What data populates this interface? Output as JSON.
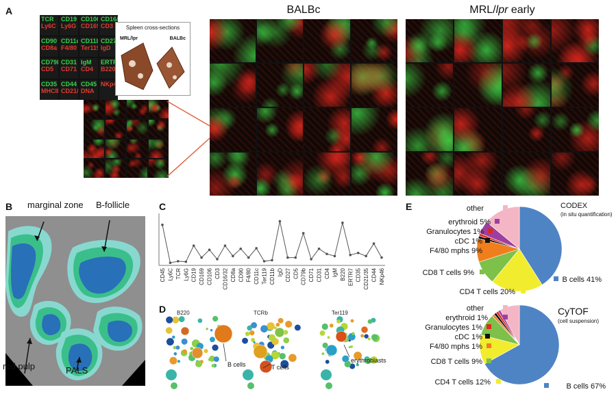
{
  "panel_labels": {
    "a": "A",
    "b": "B",
    "c": "C",
    "d": "D",
    "e": "E"
  },
  "panel_a": {
    "legend_pairs": [
      [
        "TCR",
        "Ly6C"
      ],
      [
        "CD19",
        "Ly6G"
      ],
      [
        "CD106",
        "CD169"
      ],
      [
        "CD16/32",
        "CD3"
      ],
      [
        "CD90",
        "CD8a"
      ],
      [
        "CD11c",
        "F4/80"
      ],
      [
        "CD11b",
        "Ter119"
      ],
      [
        "CD27",
        "IgD"
      ],
      [
        "CD79b",
        "CD5"
      ],
      [
        "CD31",
        "CD71"
      ],
      [
        "IgM",
        "CD4"
      ],
      [
        "ERTR7",
        "B220"
      ],
      [
        "CD35",
        "MHCII"
      ],
      [
        "CD44",
        "CD21/35"
      ],
      [
        "CD45",
        "DNA"
      ],
      [
        "",
        "NKp46"
      ]
    ],
    "inset_title": "Spleen cross-sections",
    "inset_left": "MRL/lpr",
    "inset_right": "BALBc",
    "balbc_title": "BALBc",
    "mrl_title_pre": "MRL/",
    "mrl_title_it": "lpr",
    "mrl_title_post": " early"
  },
  "panel_b": {
    "label_marginal": "marginal zone",
    "label_follicle": "B-follicle",
    "label_redpulp": "red pulp",
    "label_pals": "PALS",
    "colors": {
      "redpulp": "#8f8f8f",
      "marginal": "#88d8d0",
      "followed": "#3bbf8a",
      "bfollicle": "#2870b8"
    }
  },
  "chart_data": {
    "type": "line",
    "categories": [
      "CD45",
      "Ly6C",
      "TCR",
      "Ly6G",
      "CD19",
      "CD169",
      "CD106",
      "CD3",
      "CD16/32",
      "CD8a",
      "CD90",
      "F4/80",
      "CD11c",
      "Ter119",
      "CD11b",
      "IgD",
      "CD27",
      "CD5",
      "CD79b",
      "CD71",
      "CD31",
      "CD4",
      "IgM",
      "B220",
      "ERTR7",
      "CD35",
      "CD21/35",
      "CD44",
      "NKp46"
    ],
    "values": [
      0.78,
      0.05,
      0.08,
      0.07,
      0.38,
      0.15,
      0.3,
      0.12,
      0.38,
      0.18,
      0.32,
      0.15,
      0.33,
      0.08,
      0.1,
      0.85,
      0.15,
      0.15,
      0.62,
      0.12,
      0.32,
      0.22,
      0.18,
      0.82,
      0.2,
      0.24,
      0.18,
      0.42,
      0.15
    ],
    "ylim": [
      0,
      1
    ],
    "xlabel": "",
    "ylabel": "",
    "title": ""
  },
  "panel_d": {
    "titles": [
      "B220",
      "TCRb",
      "Ter119"
    ],
    "annotations": [
      "B cells",
      "T cells",
      "erythroblasts"
    ]
  },
  "panel_e": {
    "codex": {
      "title": "CODEX",
      "subtitle": "(in situ quantification)",
      "labels": [
        "other",
        "erythroid 5%",
        "Granulocytes 1%",
        "cDC 1%",
        "F4/80 mphs 9%",
        "CD8 T cells 9%",
        "CD4 T cells 20%",
        "B cells 41%"
      ],
      "slices": [
        {
          "name": "B cells",
          "value": 41,
          "color": "#4f84c4"
        },
        {
          "name": "CD4 T cells",
          "value": 20,
          "color": "#f2ec2e"
        },
        {
          "name": "CD8 T cells",
          "value": 9,
          "color": "#7dc04a"
        },
        {
          "name": "F4/80 mphs",
          "value": 9,
          "color": "#f07e1c"
        },
        {
          "name": "cDC",
          "value": 1,
          "color": "#111111"
        },
        {
          "name": "Granulocytes",
          "value": 1,
          "color": "#e0281e"
        },
        {
          "name": "erythroid",
          "value": 5,
          "color": "#9c3fa0"
        },
        {
          "name": "other",
          "value": 14,
          "color": "#f4b6c4"
        }
      ]
    },
    "cytof": {
      "title": "CyTOF",
      "subtitle": "(cell suspension)",
      "labels": [
        "other",
        "erythroid 1%",
        "Granulocytes 1%",
        "cDC 1%",
        "F4/80 mphs 1%",
        "CD8 T cells 9%",
        "CD4 T cells 12%",
        "B cells 67%"
      ],
      "slices": [
        {
          "name": "B cells",
          "value": 67,
          "color": "#4f84c4"
        },
        {
          "name": "CD4 T cells",
          "value": 12,
          "color": "#f2ec2e"
        },
        {
          "name": "CD8 T cells",
          "value": 9,
          "color": "#7dc04a"
        },
        {
          "name": "F4/80 mphs",
          "value": 1,
          "color": "#f07e1c"
        },
        {
          "name": "cDC",
          "value": 1,
          "color": "#111111"
        },
        {
          "name": "Granulocytes",
          "value": 1,
          "color": "#e0281e"
        },
        {
          "name": "erythroid",
          "value": 1,
          "color": "#9c3fa0"
        },
        {
          "name": "other",
          "value": 8,
          "color": "#f4b6c4"
        }
      ]
    }
  }
}
